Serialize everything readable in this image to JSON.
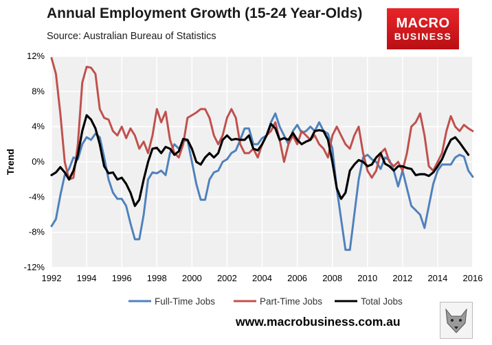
{
  "header": {
    "title": "Annual Employment Growth (15-24 Year-Olds)",
    "subtitle": "Source: Australian Bureau of Statistics"
  },
  "logo": {
    "line1": "MACRO",
    "line2": "BUSINESS",
    "color": "#d8181e"
  },
  "footer": {
    "url": "www.macrobusiness.com.au",
    "badge_icon": "fox-face-icon"
  },
  "chart_data": {
    "type": "line",
    "ylabel": "Trend",
    "xlabel": "",
    "xlim": [
      1992,
      2016
    ],
    "ylim": [
      -12,
      12
    ],
    "x_ticks": [
      "1992",
      "1994",
      "1996",
      "1998",
      "2000",
      "2002",
      "2004",
      "2006",
      "2008",
      "2010",
      "2012",
      "2014",
      "2016"
    ],
    "y_ticks": [
      "12%",
      "8%",
      "4%",
      "0%",
      "-4%",
      "-8%",
      "-12%"
    ],
    "grid": true,
    "legend_position": "bottom",
    "series": [
      {
        "name": "Full-Time Jobs",
        "color": "#4f81bd",
        "points": [
          [
            1992,
            -7.3
          ],
          [
            1992.25,
            -6.5
          ],
          [
            1992.5,
            -3.8
          ],
          [
            1992.75,
            -1.5
          ],
          [
            1993,
            -0.8
          ],
          [
            1993.25,
            0.5
          ],
          [
            1993.5,
            0.3
          ],
          [
            1993.75,
            2
          ],
          [
            1994,
            2.8
          ],
          [
            1994.25,
            2.5
          ],
          [
            1994.5,
            3.2
          ],
          [
            1994.75,
            2.8
          ],
          [
            1995,
            0.5
          ],
          [
            1995.25,
            -2
          ],
          [
            1995.5,
            -3.5
          ],
          [
            1995.75,
            -4.2
          ],
          [
            1996,
            -4.2
          ],
          [
            1996.25,
            -5
          ],
          [
            1996.5,
            -7
          ],
          [
            1996.75,
            -8.8
          ],
          [
            1997,
            -8.8
          ],
          [
            1997.25,
            -6
          ],
          [
            1997.5,
            -2
          ],
          [
            1997.75,
            -1.2
          ],
          [
            1998,
            -1.3
          ],
          [
            1998.25,
            -1
          ],
          [
            1998.5,
            -1.5
          ],
          [
            1998.75,
            1
          ],
          [
            1999,
            2
          ],
          [
            1999.25,
            1.5
          ],
          [
            1999.5,
            2.3
          ],
          [
            1999.75,
            2.5
          ],
          [
            2000,
            0
          ],
          [
            2000.25,
            -2.5
          ],
          [
            2000.5,
            -4.3
          ],
          [
            2000.75,
            -4.3
          ],
          [
            2001,
            -2
          ],
          [
            2001.25,
            -1.2
          ],
          [
            2001.5,
            -1
          ],
          [
            2001.75,
            0
          ],
          [
            2002,
            0.3
          ],
          [
            2002.25,
            1
          ],
          [
            2002.5,
            1.3
          ],
          [
            2002.75,
            2.5
          ],
          [
            2003,
            3.8
          ],
          [
            2003.25,
            3.8
          ],
          [
            2003.5,
            2
          ],
          [
            2003.75,
            2
          ],
          [
            2004,
            2.7
          ],
          [
            2004.25,
            3
          ],
          [
            2004.5,
            4.5
          ],
          [
            2004.75,
            5.5
          ],
          [
            2005,
            4
          ],
          [
            2005.25,
            3
          ],
          [
            2005.5,
            2
          ],
          [
            2005.75,
            3.5
          ],
          [
            2006,
            4.2
          ],
          [
            2006.25,
            3.3
          ],
          [
            2006.5,
            3.5
          ],
          [
            2006.75,
            4
          ],
          [
            2007,
            3.5
          ],
          [
            2007.25,
            4.5
          ],
          [
            2007.5,
            3.5
          ],
          [
            2007.75,
            3.2
          ],
          [
            2008,
            1.5
          ],
          [
            2008.25,
            -3
          ],
          [
            2008.5,
            -6.5
          ],
          [
            2008.75,
            -10
          ],
          [
            2009,
            -10
          ],
          [
            2009.25,
            -6
          ],
          [
            2009.5,
            -2
          ],
          [
            2009.75,
            0.5
          ],
          [
            2010,
            0.8
          ],
          [
            2010.25,
            0.3
          ],
          [
            2010.5,
            0
          ],
          [
            2010.75,
            -0.8
          ],
          [
            2011,
            0.5
          ],
          [
            2011.25,
            0.2
          ],
          [
            2011.5,
            -1
          ],
          [
            2011.75,
            -2.8
          ],
          [
            2012,
            -1
          ],
          [
            2012.25,
            -3
          ],
          [
            2012.5,
            -5
          ],
          [
            2012.75,
            -5.5
          ],
          [
            2013,
            -6
          ],
          [
            2013.25,
            -7.5
          ],
          [
            2013.5,
            -5
          ],
          [
            2013.75,
            -2.5
          ],
          [
            2014,
            -1
          ],
          [
            2014.25,
            -0.3
          ],
          [
            2014.5,
            -0.3
          ],
          [
            2014.75,
            -0.3
          ],
          [
            2015,
            0.5
          ],
          [
            2015.25,
            0.8
          ],
          [
            2015.5,
            0.6
          ],
          [
            2015.75,
            -1
          ],
          [
            2016,
            -1.7
          ]
        ]
      },
      {
        "name": "Part-Time Jobs",
        "color": "#c0504d",
        "points": [
          [
            1992,
            11.8
          ],
          [
            1992.25,
            10
          ],
          [
            1992.5,
            5.5
          ],
          [
            1992.75,
            0
          ],
          [
            1993,
            -2
          ],
          [
            1993.25,
            -1.8
          ],
          [
            1993.5,
            2
          ],
          [
            1993.75,
            9
          ],
          [
            1994,
            10.8
          ],
          [
            1994.25,
            10.7
          ],
          [
            1994.5,
            10
          ],
          [
            1994.75,
            6
          ],
          [
            1995,
            5
          ],
          [
            1995.25,
            4.8
          ],
          [
            1995.5,
            3.5
          ],
          [
            1995.75,
            3
          ],
          [
            1996,
            4
          ],
          [
            1996.25,
            2.7
          ],
          [
            1996.5,
            3.8
          ],
          [
            1996.75,
            3
          ],
          [
            1997,
            1.5
          ],
          [
            1997.25,
            2.3
          ],
          [
            1997.5,
            1
          ],
          [
            1997.75,
            3
          ],
          [
            1998,
            6
          ],
          [
            1998.25,
            4.5
          ],
          [
            1998.5,
            5.7
          ],
          [
            1998.75,
            2.5
          ],
          [
            1999,
            1
          ],
          [
            1999.25,
            0.5
          ],
          [
            1999.5,
            2
          ],
          [
            1999.75,
            5
          ],
          [
            2000,
            5.3
          ],
          [
            2000.25,
            5.6
          ],
          [
            2000.5,
            6
          ],
          [
            2000.75,
            6
          ],
          [
            2001,
            5
          ],
          [
            2001.25,
            3
          ],
          [
            2001.5,
            2
          ],
          [
            2001.75,
            3
          ],
          [
            2002,
            5
          ],
          [
            2002.25,
            6
          ],
          [
            2002.5,
            5
          ],
          [
            2002.75,
            2
          ],
          [
            2003,
            1
          ],
          [
            2003.25,
            1
          ],
          [
            2003.5,
            1.5
          ],
          [
            2003.75,
            0.5
          ],
          [
            2004,
            2
          ],
          [
            2004.25,
            3
          ],
          [
            2004.5,
            3.5
          ],
          [
            2004.75,
            4.5
          ],
          [
            2005,
            2.5
          ],
          [
            2005.25,
            0
          ],
          [
            2005.5,
            2
          ],
          [
            2005.75,
            3
          ],
          [
            2006,
            2
          ],
          [
            2006.25,
            3.5
          ],
          [
            2006.5,
            3
          ],
          [
            2006.75,
            2.5
          ],
          [
            2007,
            3
          ],
          [
            2007.25,
            2
          ],
          [
            2007.5,
            1.5
          ],
          [
            2007.75,
            0.5
          ],
          [
            2008,
            3
          ],
          [
            2008.25,
            4
          ],
          [
            2008.5,
            3
          ],
          [
            2008.75,
            2
          ],
          [
            2009,
            1.5
          ],
          [
            2009.25,
            3
          ],
          [
            2009.5,
            4
          ],
          [
            2009.75,
            1
          ],
          [
            2010,
            -1
          ],
          [
            2010.25,
            -1.8
          ],
          [
            2010.5,
            -1
          ],
          [
            2010.75,
            1
          ],
          [
            2011,
            1.5
          ],
          [
            2011.25,
            0
          ],
          [
            2011.5,
            -0.5
          ],
          [
            2011.75,
            0
          ],
          [
            2012,
            -1
          ],
          [
            2012.25,
            1
          ],
          [
            2012.5,
            4
          ],
          [
            2012.75,
            4.5
          ],
          [
            2013,
            5.5
          ],
          [
            2013.25,
            3
          ],
          [
            2013.5,
            -0.5
          ],
          [
            2013.75,
            -1
          ],
          [
            2014,
            0
          ],
          [
            2014.25,
            1
          ],
          [
            2014.5,
            3.5
          ],
          [
            2014.75,
            5.2
          ],
          [
            2015,
            4
          ],
          [
            2015.25,
            3.5
          ],
          [
            2015.5,
            4.2
          ],
          [
            2015.75,
            3.8
          ],
          [
            2016,
            3.5
          ]
        ]
      },
      {
        "name": "Total Jobs",
        "color": "#000000",
        "points": [
          [
            1992,
            -1.5
          ],
          [
            1992.25,
            -1.2
          ],
          [
            1992.5,
            -0.6
          ],
          [
            1992.75,
            -1.2
          ],
          [
            1993,
            -2
          ],
          [
            1993.25,
            -1
          ],
          [
            1993.5,
            0.8
          ],
          [
            1993.75,
            3.5
          ],
          [
            1994,
            5.3
          ],
          [
            1994.25,
            4.8
          ],
          [
            1994.5,
            3.8
          ],
          [
            1994.75,
            2
          ],
          [
            1995,
            -0.5
          ],
          [
            1995.25,
            -1.3
          ],
          [
            1995.5,
            -1.2
          ],
          [
            1995.75,
            -2
          ],
          [
            1996,
            -1.8
          ],
          [
            1996.25,
            -2.5
          ],
          [
            1996.5,
            -3.5
          ],
          [
            1996.75,
            -5
          ],
          [
            1997,
            -4.3
          ],
          [
            1997.25,
            -2
          ],
          [
            1997.5,
            0
          ],
          [
            1997.75,
            1.5
          ],
          [
            1998,
            1.6
          ],
          [
            1998.25,
            1
          ],
          [
            1998.5,
            1.7
          ],
          [
            1998.75,
            1.5
          ],
          [
            1999,
            0.8
          ],
          [
            1999.25,
            1.2
          ],
          [
            1999.5,
            2.6
          ],
          [
            1999.75,
            2.5
          ],
          [
            2000,
            1.5
          ],
          [
            2000.25,
            0
          ],
          [
            2000.5,
            -0.3
          ],
          [
            2000.75,
            0.5
          ],
          [
            2001,
            1
          ],
          [
            2001.25,
            0.5
          ],
          [
            2001.5,
            1
          ],
          [
            2001.75,
            2.5
          ],
          [
            2002,
            3
          ],
          [
            2002.25,
            2.5
          ],
          [
            2002.5,
            2.6
          ],
          [
            2002.75,
            2.5
          ],
          [
            2003,
            2.5
          ],
          [
            2003.25,
            3
          ],
          [
            2003.5,
            1.5
          ],
          [
            2003.75,
            1.3
          ],
          [
            2004,
            2
          ],
          [
            2004.25,
            3
          ],
          [
            2004.5,
            4.3
          ],
          [
            2004.75,
            3.8
          ],
          [
            2005,
            2.5
          ],
          [
            2005.25,
            2.7
          ],
          [
            2005.5,
            2.5
          ],
          [
            2005.75,
            3.3
          ],
          [
            2006,
            2.5
          ],
          [
            2006.25,
            2
          ],
          [
            2006.5,
            2.3
          ],
          [
            2006.75,
            2.5
          ],
          [
            2007,
            3.5
          ],
          [
            2007.25,
            3.6
          ],
          [
            2007.5,
            3.5
          ],
          [
            2007.75,
            2.5
          ],
          [
            2008,
            0
          ],
          [
            2008.25,
            -3
          ],
          [
            2008.5,
            -4.2
          ],
          [
            2008.75,
            -3.5
          ],
          [
            2009,
            -1
          ],
          [
            2009.25,
            -0.3
          ],
          [
            2009.5,
            0.2
          ],
          [
            2009.75,
            0
          ],
          [
            2010,
            -0.5
          ],
          [
            2010.25,
            -0.3
          ],
          [
            2010.5,
            0.5
          ],
          [
            2010.75,
            1
          ],
          [
            2011,
            -0.2
          ],
          [
            2011.25,
            -0.5
          ],
          [
            2011.5,
            -1
          ],
          [
            2011.75,
            -0.5
          ],
          [
            2012,
            -0.5
          ],
          [
            2012.25,
            -0.7
          ],
          [
            2012.5,
            -0.8
          ],
          [
            2012.75,
            -1.5
          ],
          [
            2013,
            -1.4
          ],
          [
            2013.25,
            -1.4
          ],
          [
            2013.5,
            -1.6
          ],
          [
            2013.75,
            -1.2
          ],
          [
            2014,
            -0.5
          ],
          [
            2014.25,
            0.3
          ],
          [
            2014.5,
            1.5
          ],
          [
            2014.75,
            2.5
          ],
          [
            2015,
            2.8
          ],
          [
            2015.25,
            2.2
          ],
          [
            2015.5,
            1.5
          ],
          [
            2015.75,
            0.8
          ]
        ]
      }
    ]
  }
}
